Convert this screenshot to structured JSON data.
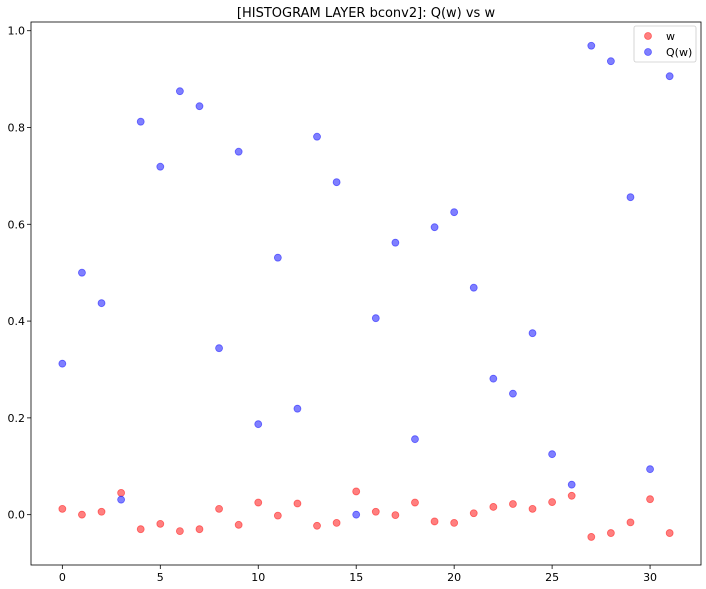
{
  "chart_data": {
    "type": "scatter",
    "title": "[HISTOGRAM LAYER bconv2]: Q(w) vs w",
    "xlabel": "",
    "ylabel": "",
    "xlim": [
      -1.6,
      32.6
    ],
    "ylim": [
      -0.104,
      1.018
    ],
    "xticks": [
      0,
      5,
      10,
      15,
      20,
      25,
      30
    ],
    "yticks": [
      0.0,
      0.2,
      0.4,
      0.6,
      0.8,
      1.0
    ],
    "ytick_labels": [
      "0.0",
      "0.2",
      "0.4",
      "0.6",
      "0.8",
      "1.0"
    ],
    "grid": false,
    "legend_position": "top-right",
    "series": [
      {
        "name": "w",
        "color": "#ff0000",
        "x": [
          0,
          1,
          2,
          3,
          4,
          5,
          6,
          7,
          8,
          9,
          10,
          11,
          12,
          13,
          14,
          15,
          16,
          17,
          18,
          19,
          20,
          21,
          22,
          23,
          24,
          25,
          26,
          27,
          28,
          29,
          30,
          31
        ],
        "y": [
          0.012,
          0.0,
          0.006,
          0.045,
          -0.03,
          -0.019,
          -0.034,
          -0.03,
          0.012,
          -0.021,
          0.025,
          -0.002,
          0.023,
          -0.023,
          -0.017,
          0.048,
          0.006,
          -0.001,
          0.025,
          -0.014,
          -0.017,
          0.003,
          0.016,
          0.022,
          0.012,
          0.026,
          0.039,
          -0.046,
          -0.038,
          -0.016,
          0.032,
          -0.038
        ]
      },
      {
        "name": "Q(w)",
        "color": "#0000ff",
        "x": [
          0,
          1,
          2,
          3,
          4,
          5,
          6,
          7,
          8,
          9,
          10,
          11,
          12,
          13,
          14,
          15,
          16,
          17,
          18,
          19,
          20,
          21,
          22,
          23,
          24,
          25,
          26,
          27,
          28,
          29,
          30,
          31
        ],
        "y": [
          0.312,
          0.5,
          0.437,
          0.031,
          0.812,
          0.719,
          0.875,
          0.844,
          0.344,
          0.75,
          0.187,
          0.531,
          0.219,
          0.781,
          0.687,
          0.0,
          0.406,
          0.562,
          0.156,
          0.594,
          0.625,
          0.469,
          0.281,
          0.25,
          0.375,
          0.125,
          0.062,
          0.969,
          0.937,
          0.656,
          0.094,
          0.906
        ]
      }
    ]
  }
}
